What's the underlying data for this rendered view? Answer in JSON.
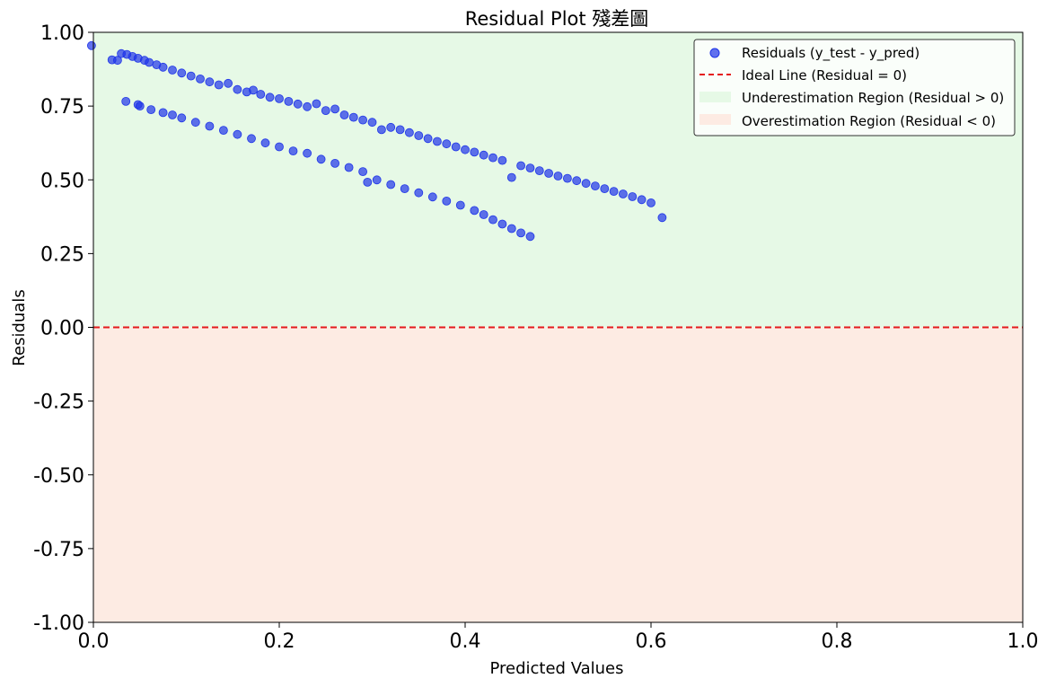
{
  "chart_data": {
    "type": "scatter",
    "title": "Residual Plot 殘差圖",
    "xlabel": "Predicted Values",
    "ylabel": "Residuals",
    "xlim": [
      0.0,
      1.0
    ],
    "ylim": [
      -1.0,
      1.0
    ],
    "x_ticks": [
      "0.0",
      "0.2",
      "0.4",
      "0.6",
      "0.8",
      "1.0"
    ],
    "y_ticks": [
      "1.00",
      "0.75",
      "0.50",
      "0.25",
      "0.00",
      "-0.25",
      "-0.50",
      "-0.75",
      "-1.00"
    ],
    "grid": false,
    "legend_position": "top-right",
    "colors": {
      "points": "#1f35e8",
      "ideal_line": "#e41a1c",
      "under_region": "#e6f9e6",
      "over_region": "#fdebe3"
    },
    "regions": [
      {
        "name": "Underestimation Region (Residual > 0)",
        "y_from": 0.0,
        "y_to": 1.0
      },
      {
        "name": "Overestimation Region (Residual < 0)",
        "y_from": -1.0,
        "y_to": 0.0
      }
    ],
    "reference_line": {
      "name": "Ideal Line (Residual = 0)",
      "y": 0.0,
      "style": "dashed"
    },
    "series": [
      {
        "name": "Residuals (y_test - y_pred)",
        "points": [
          [
            -0.002,
            0.955
          ],
          [
            0.02,
            0.907
          ],
          [
            0.026,
            0.905
          ],
          [
            0.03,
            0.928
          ],
          [
            0.036,
            0.925
          ],
          [
            0.042,
            0.918
          ],
          [
            0.048,
            0.912
          ],
          [
            0.055,
            0.905
          ],
          [
            0.06,
            0.898
          ],
          [
            0.068,
            0.89
          ],
          [
            0.075,
            0.882
          ],
          [
            0.085,
            0.872
          ],
          [
            0.095,
            0.862
          ],
          [
            0.105,
            0.852
          ],
          [
            0.115,
            0.842
          ],
          [
            0.125,
            0.832
          ],
          [
            0.135,
            0.822
          ],
          [
            0.145,
            0.827
          ],
          [
            0.155,
            0.806
          ],
          [
            0.165,
            0.798
          ],
          [
            0.172,
            0.804
          ],
          [
            0.18,
            0.79
          ],
          [
            0.19,
            0.78
          ],
          [
            0.2,
            0.775
          ],
          [
            0.21,
            0.766
          ],
          [
            0.22,
            0.757
          ],
          [
            0.23,
            0.748
          ],
          [
            0.24,
            0.758
          ],
          [
            0.25,
            0.735
          ],
          [
            0.26,
            0.74
          ],
          [
            0.27,
            0.72
          ],
          [
            0.28,
            0.712
          ],
          [
            0.29,
            0.703
          ],
          [
            0.3,
            0.695
          ],
          [
            0.31,
            0.67
          ],
          [
            0.32,
            0.678
          ],
          [
            0.33,
            0.67
          ],
          [
            0.34,
            0.66
          ],
          [
            0.35,
            0.65
          ],
          [
            0.36,
            0.64
          ],
          [
            0.37,
            0.63
          ],
          [
            0.38,
            0.622
          ],
          [
            0.39,
            0.612
          ],
          [
            0.4,
            0.602
          ],
          [
            0.41,
            0.594
          ],
          [
            0.42,
            0.584
          ],
          [
            0.43,
            0.575
          ],
          [
            0.44,
            0.566
          ],
          [
            0.45,
            0.508
          ],
          [
            0.46,
            0.548
          ],
          [
            0.47,
            0.54
          ],
          [
            0.48,
            0.531
          ],
          [
            0.49,
            0.522
          ],
          [
            0.5,
            0.513
          ],
          [
            0.51,
            0.505
          ],
          [
            0.52,
            0.497
          ],
          [
            0.53,
            0.488
          ],
          [
            0.54,
            0.479
          ],
          [
            0.55,
            0.47
          ],
          [
            0.56,
            0.461
          ],
          [
            0.57,
            0.452
          ],
          [
            0.58,
            0.443
          ],
          [
            0.59,
            0.433
          ],
          [
            0.6,
            0.422
          ],
          [
            0.612,
            0.372
          ],
          [
            0.035,
            0.766
          ],
          [
            0.048,
            0.755
          ],
          [
            0.05,
            0.75
          ],
          [
            0.062,
            0.738
          ],
          [
            0.075,
            0.728
          ],
          [
            0.085,
            0.72
          ],
          [
            0.095,
            0.71
          ],
          [
            0.11,
            0.695
          ],
          [
            0.125,
            0.682
          ],
          [
            0.14,
            0.668
          ],
          [
            0.155,
            0.654
          ],
          [
            0.17,
            0.64
          ],
          [
            0.185,
            0.625
          ],
          [
            0.2,
            0.612
          ],
          [
            0.215,
            0.598
          ],
          [
            0.23,
            0.59
          ],
          [
            0.245,
            0.57
          ],
          [
            0.26,
            0.556
          ],
          [
            0.275,
            0.542
          ],
          [
            0.29,
            0.528
          ],
          [
            0.295,
            0.492
          ],
          [
            0.305,
            0.5
          ],
          [
            0.32,
            0.484
          ],
          [
            0.335,
            0.47
          ],
          [
            0.35,
            0.456
          ],
          [
            0.365,
            0.442
          ],
          [
            0.38,
            0.428
          ],
          [
            0.395,
            0.414
          ],
          [
            0.41,
            0.396
          ],
          [
            0.42,
            0.382
          ],
          [
            0.43,
            0.365
          ],
          [
            0.44,
            0.35
          ],
          [
            0.45,
            0.335
          ],
          [
            0.46,
            0.32
          ],
          [
            0.47,
            0.308
          ]
        ]
      }
    ]
  }
}
